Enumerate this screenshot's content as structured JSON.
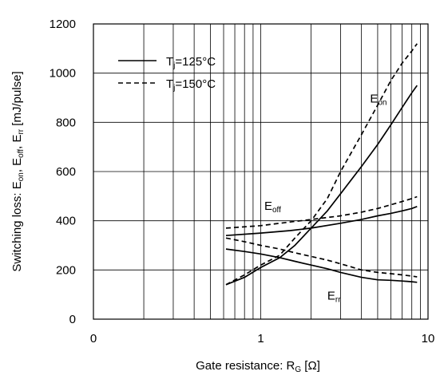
{
  "chart_data": {
    "type": "line",
    "xlabel": "Gate resistance: R",
    "xlabel_sub": "G",
    "xlabel_unit": " [Ω]",
    "ylabel_parts": [
      {
        "t": "Switching loss: E",
        "sub": false
      },
      {
        "t": "on",
        "sub": true
      },
      {
        "t": ", E",
        "sub": false
      },
      {
        "t": "off",
        "sub": true
      },
      {
        "t": ", E",
        "sub": false
      },
      {
        "t": "rr",
        "sub": true
      },
      {
        "t": " [mJ/pulse]",
        "sub": false
      }
    ],
    "x_scale": "log",
    "xlim": [
      0.1,
      10
    ],
    "ylim": [
      0,
      1200
    ],
    "x_ticks": [
      0.1,
      1,
      10
    ],
    "x_tick_labels": [
      "0",
      "1",
      "10"
    ],
    "y_ticks": [
      0,
      200,
      400,
      600,
      800,
      1000,
      1200
    ],
    "y_tick_labels": [
      "0",
      "200",
      "400",
      "600",
      "800",
      "1000",
      "1200"
    ],
    "grid": true,
    "legend_position": "top-left",
    "legend": [
      {
        "label_main": "T",
        "label_sub": "j",
        "label_rest": "=125°C",
        "style": "solid"
      },
      {
        "label_main": "T",
        "label_sub": "j",
        "label_rest": "=150°C",
        "style": "dashed"
      }
    ],
    "annotations": [
      {
        "main": "E",
        "sub": "on",
        "at": [
          4.5,
          880
        ]
      },
      {
        "main": "E",
        "sub": "off",
        "at": [
          1.05,
          445
        ]
      },
      {
        "main": "E",
        "sub": "rr",
        "at": [
          2.5,
          80
        ]
      }
    ],
    "series": [
      {
        "name": "Eon",
        "tj": 125,
        "style": "solid",
        "x": [
          0.62,
          0.8,
          1.0,
          1.3,
          1.6,
          2.0,
          2.5,
          3.0,
          4.0,
          5.0,
          6.0,
          7.0,
          8.0,
          8.6
        ],
        "y": [
          140,
          170,
          210,
          250,
          300,
          370,
          440,
          510,
          620,
          710,
          790,
          860,
          920,
          950
        ]
      },
      {
        "name": "Eon",
        "tj": 150,
        "style": "dashed",
        "x": [
          0.62,
          0.8,
          1.0,
          1.3,
          1.6,
          2.0,
          2.5,
          3.0,
          4.0,
          5.0,
          6.0,
          7.0,
          8.0,
          8.6
        ],
        "y": [
          140,
          180,
          220,
          260,
          330,
          400,
          490,
          600,
          750,
          870,
          970,
          1040,
          1090,
          1120
        ]
      },
      {
        "name": "Eoff",
        "tj": 125,
        "style": "solid",
        "x": [
          0.62,
          1.0,
          1.5,
          2.0,
          3.0,
          4.0,
          5.0,
          6.0,
          7.0,
          8.0,
          8.6
        ],
        "y": [
          340,
          350,
          360,
          370,
          390,
          405,
          420,
          430,
          440,
          450,
          458
        ]
      },
      {
        "name": "Eoff",
        "tj": 150,
        "style": "dashed",
        "x": [
          0.62,
          1.0,
          1.5,
          2.0,
          3.0,
          4.0,
          5.0,
          6.0,
          7.0,
          8.0,
          8.6
        ],
        "y": [
          370,
          380,
          395,
          405,
          420,
          435,
          450,
          465,
          478,
          490,
          498
        ]
      },
      {
        "name": "Err",
        "tj": 125,
        "style": "solid",
        "x": [
          0.62,
          0.8,
          1.0,
          1.3,
          1.6,
          2.0,
          2.5,
          3.0,
          4.0,
          5.0,
          6.0,
          7.0,
          8.0,
          8.6
        ],
        "y": [
          285,
          275,
          265,
          250,
          235,
          220,
          205,
          190,
          170,
          160,
          158,
          155,
          152,
          150
        ]
      },
      {
        "name": "Err",
        "tj": 150,
        "style": "dashed",
        "x": [
          0.62,
          0.8,
          1.0,
          1.3,
          1.6,
          2.0,
          2.5,
          3.0,
          4.0,
          5.0,
          6.0,
          7.0,
          8.0,
          8.6
        ],
        "y": [
          330,
          315,
          300,
          285,
          270,
          255,
          240,
          225,
          200,
          190,
          185,
          180,
          175,
          172
        ]
      }
    ]
  }
}
